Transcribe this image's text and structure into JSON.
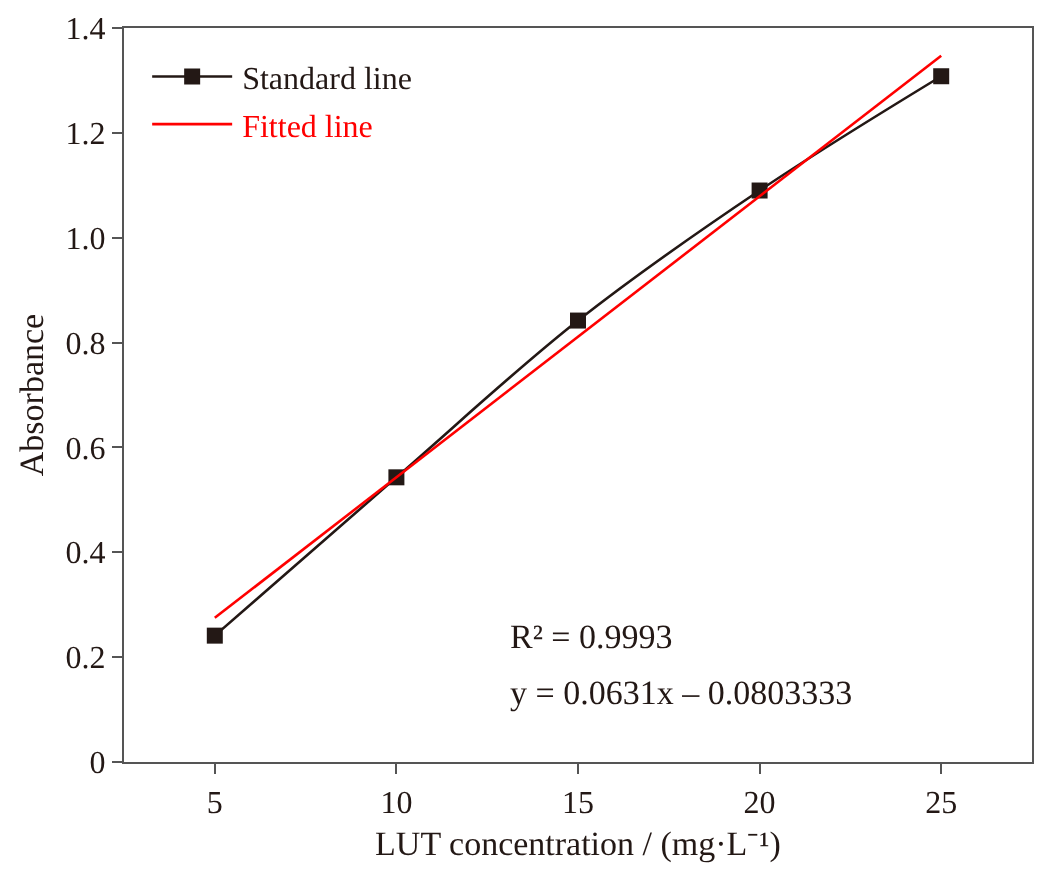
{
  "chart_data": {
    "type": "line",
    "xlabel": "LUT concentration / (mg·L⁻¹)",
    "ylabel": "Absorbance",
    "xlim": [
      2.5,
      27.5
    ],
    "xticks": [
      5,
      10,
      15,
      20,
      25
    ],
    "ylim": [
      0,
      1.4
    ],
    "yticks": [
      0,
      0.2,
      0.4,
      0.6,
      0.8,
      {
        "value": 1.0,
        "label": "1.0"
      },
      1.2,
      1.4
    ],
    "series": [
      {
        "name": "Standard line",
        "color": "#231815",
        "x": [
          5,
          10,
          15,
          20,
          25
        ],
        "values": [
          0.241,
          0.543,
          0.842,
          1.09,
          1.308
        ],
        "marker": "square"
      },
      {
        "name": "Fitted line",
        "color": "#ff0000",
        "x": [
          5,
          25
        ],
        "values": [
          0.275,
          1.347
        ],
        "marker": "none"
      }
    ],
    "annotations": [
      {
        "text": "R² = 0.9993"
      },
      {
        "text": "y = 0.0631x – 0.0803333"
      }
    ],
    "legend": "top left"
  }
}
